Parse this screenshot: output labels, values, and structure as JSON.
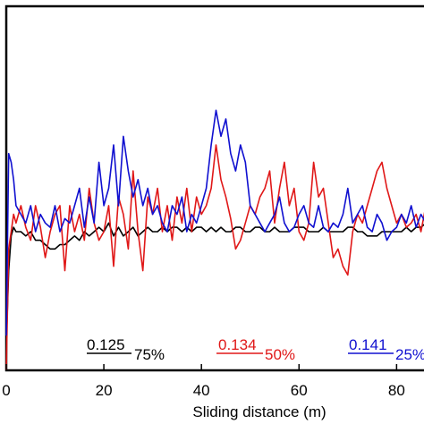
{
  "chart_data": {
    "type": "line",
    "xlabel": "Sliding distance (m)",
    "ylabel": "",
    "xlim": [
      0,
      88
    ],
    "ylim": [
      -0.18,
      0.66
    ],
    "x_ticks": [
      0,
      20,
      40,
      60,
      80
    ],
    "grid": false,
    "legend": "none",
    "colors": {
      "black": "#000000",
      "red": "#e01818",
      "blue": "#1010d0"
    },
    "annotations": [
      {
        "value": "0.125",
        "label": "75%",
        "color": "#000000"
      },
      {
        "value": "0.134",
        "label": "50%",
        "color": "#e01818"
      },
      {
        "value": "0.141",
        "label": "25%",
        "color": "#1010d0"
      }
    ],
    "series": [
      {
        "color": "#000000",
        "x": [
          0,
          0.5,
          1,
          1.5,
          2,
          3,
          4,
          5,
          6,
          7,
          8,
          9,
          10,
          11,
          12,
          13,
          14,
          15,
          16,
          17,
          18,
          19,
          20,
          21,
          22,
          23,
          24,
          25,
          26,
          27,
          28,
          29,
          30,
          31,
          32,
          33,
          34,
          35,
          36,
          37,
          38,
          39,
          40,
          41,
          42,
          43,
          44,
          45,
          46,
          47,
          48,
          49,
          50,
          51,
          52,
          53,
          54,
          55,
          56,
          57,
          58,
          59,
          60,
          61,
          62,
          63,
          64,
          65,
          66,
          67,
          68,
          69,
          70,
          71,
          72,
          73,
          74,
          75,
          76,
          77,
          78,
          79,
          80,
          81,
          82,
          83,
          84,
          85,
          86,
          87,
          88
        ],
        "y": [
          -0.12,
          0.05,
          0.13,
          0.15,
          0.14,
          0.14,
          0.13,
          0.14,
          0.12,
          0.12,
          0.11,
          0.1,
          0.1,
          0.11,
          0.11,
          0.12,
          0.13,
          0.12,
          0.14,
          0.13,
          0.14,
          0.15,
          0.14,
          0.16,
          0.13,
          0.15,
          0.13,
          0.14,
          0.15,
          0.13,
          0.14,
          0.15,
          0.14,
          0.14,
          0.15,
          0.14,
          0.15,
          0.15,
          0.14,
          0.15,
          0.14,
          0.15,
          0.15,
          0.14,
          0.15,
          0.14,
          0.15,
          0.14,
          0.14,
          0.15,
          0.15,
          0.14,
          0.14,
          0.15,
          0.15,
          0.14,
          0.14,
          0.15,
          0.14,
          0.14,
          0.14,
          0.15,
          0.15,
          0.15,
          0.14,
          0.14,
          0.14,
          0.15,
          0.14,
          0.14,
          0.14,
          0.14,
          0.15,
          0.15,
          0.14,
          0.14,
          0.13,
          0.13,
          0.13,
          0.14,
          0.14,
          0.14,
          0.14,
          0.14,
          0.15,
          0.14,
          0.15,
          0.15,
          0.16,
          0.15,
          0.14
        ]
      },
      {
        "color": "#e01818",
        "x": [
          0,
          0.5,
          1,
          1.5,
          2,
          3,
          4,
          5,
          6,
          7,
          8,
          9,
          10,
          11,
          12,
          13,
          14,
          15,
          16,
          17,
          18,
          19,
          20,
          21,
          22,
          23,
          24,
          25,
          26,
          27,
          28,
          29,
          30,
          31,
          32,
          33,
          34,
          35,
          36,
          37,
          38,
          39,
          40,
          41,
          42,
          43,
          44,
          45,
          46,
          47,
          48,
          49,
          50,
          51,
          52,
          53,
          54,
          55,
          56,
          57,
          58,
          59,
          60,
          61,
          62,
          63,
          64,
          65,
          66,
          67,
          68,
          69,
          70,
          71,
          72,
          73,
          74,
          75,
          76,
          77,
          78,
          79,
          80,
          81,
          82,
          83,
          84,
          85,
          86,
          87,
          88
        ],
        "y": [
          -0.18,
          0.1,
          0.14,
          0.18,
          0.16,
          0.2,
          0.15,
          0.12,
          0.2,
          0.15,
          0.08,
          0.14,
          0.18,
          0.2,
          0.05,
          0.2,
          0.14,
          0.18,
          0.12,
          0.24,
          0.16,
          0.12,
          0.14,
          0.2,
          0.06,
          0.22,
          0.18,
          0.1,
          0.28,
          0.14,
          0.05,
          0.22,
          0.18,
          0.24,
          0.14,
          0.2,
          0.12,
          0.22,
          0.16,
          0.24,
          0.14,
          0.22,
          0.18,
          0.2,
          0.24,
          0.34,
          0.26,
          0.22,
          0.17,
          0.1,
          0.12,
          0.16,
          0.2,
          0.18,
          0.22,
          0.24,
          0.28,
          0.16,
          0.24,
          0.3,
          0.2,
          0.24,
          0.14,
          0.12,
          0.16,
          0.3,
          0.22,
          0.24,
          0.16,
          0.08,
          0.1,
          0.06,
          0.04,
          0.14,
          0.18,
          0.16,
          0.2,
          0.24,
          0.28,
          0.3,
          0.24,
          0.2,
          0.16,
          0.18,
          0.15,
          0.16,
          0.18,
          0.14,
          0.2,
          0.16,
          0.18
        ]
      },
      {
        "color": "#1010d0",
        "x": [
          0,
          0.5,
          1,
          1.5,
          2,
          3,
          4,
          5,
          6,
          7,
          8,
          9,
          10,
          11,
          12,
          13,
          14,
          15,
          16,
          17,
          18,
          19,
          20,
          21,
          22,
          23,
          24,
          25,
          26,
          27,
          28,
          29,
          30,
          31,
          32,
          33,
          34,
          35,
          36,
          37,
          38,
          39,
          40,
          41,
          42,
          43,
          44,
          45,
          46,
          47,
          48,
          49,
          50,
          51,
          52,
          53,
          54,
          55,
          56,
          57,
          58,
          59,
          60,
          61,
          62,
          63,
          64,
          65,
          66,
          67,
          68,
          69,
          70,
          71,
          72,
          73,
          74,
          75,
          76,
          77,
          78,
          79,
          80,
          81,
          82,
          83,
          84,
          85,
          86,
          87,
          88
        ],
        "y": [
          -0.1,
          0.32,
          0.3,
          0.26,
          0.2,
          0.18,
          0.16,
          0.2,
          0.14,
          0.18,
          0.16,
          0.15,
          0.2,
          0.14,
          0.17,
          0.16,
          0.2,
          0.24,
          0.15,
          0.22,
          0.16,
          0.3,
          0.2,
          0.24,
          0.34,
          0.2,
          0.36,
          0.28,
          0.22,
          0.26,
          0.2,
          0.24,
          0.18,
          0.2,
          0.16,
          0.14,
          0.2,
          0.18,
          0.22,
          0.14,
          0.18,
          0.16,
          0.2,
          0.24,
          0.34,
          0.42,
          0.36,
          0.4,
          0.32,
          0.28,
          0.34,
          0.3,
          0.2,
          0.18,
          0.16,
          0.14,
          0.16,
          0.18,
          0.22,
          0.16,
          0.14,
          0.15,
          0.18,
          0.2,
          0.16,
          0.15,
          0.2,
          0.15,
          0.14,
          0.16,
          0.15,
          0.18,
          0.24,
          0.16,
          0.18,
          0.2,
          0.15,
          0.14,
          0.18,
          0.16,
          0.12,
          0.14,
          0.15,
          0.18,
          0.16,
          0.2,
          0.15,
          0.18,
          0.16,
          0.2,
          0.18
        ]
      }
    ]
  }
}
